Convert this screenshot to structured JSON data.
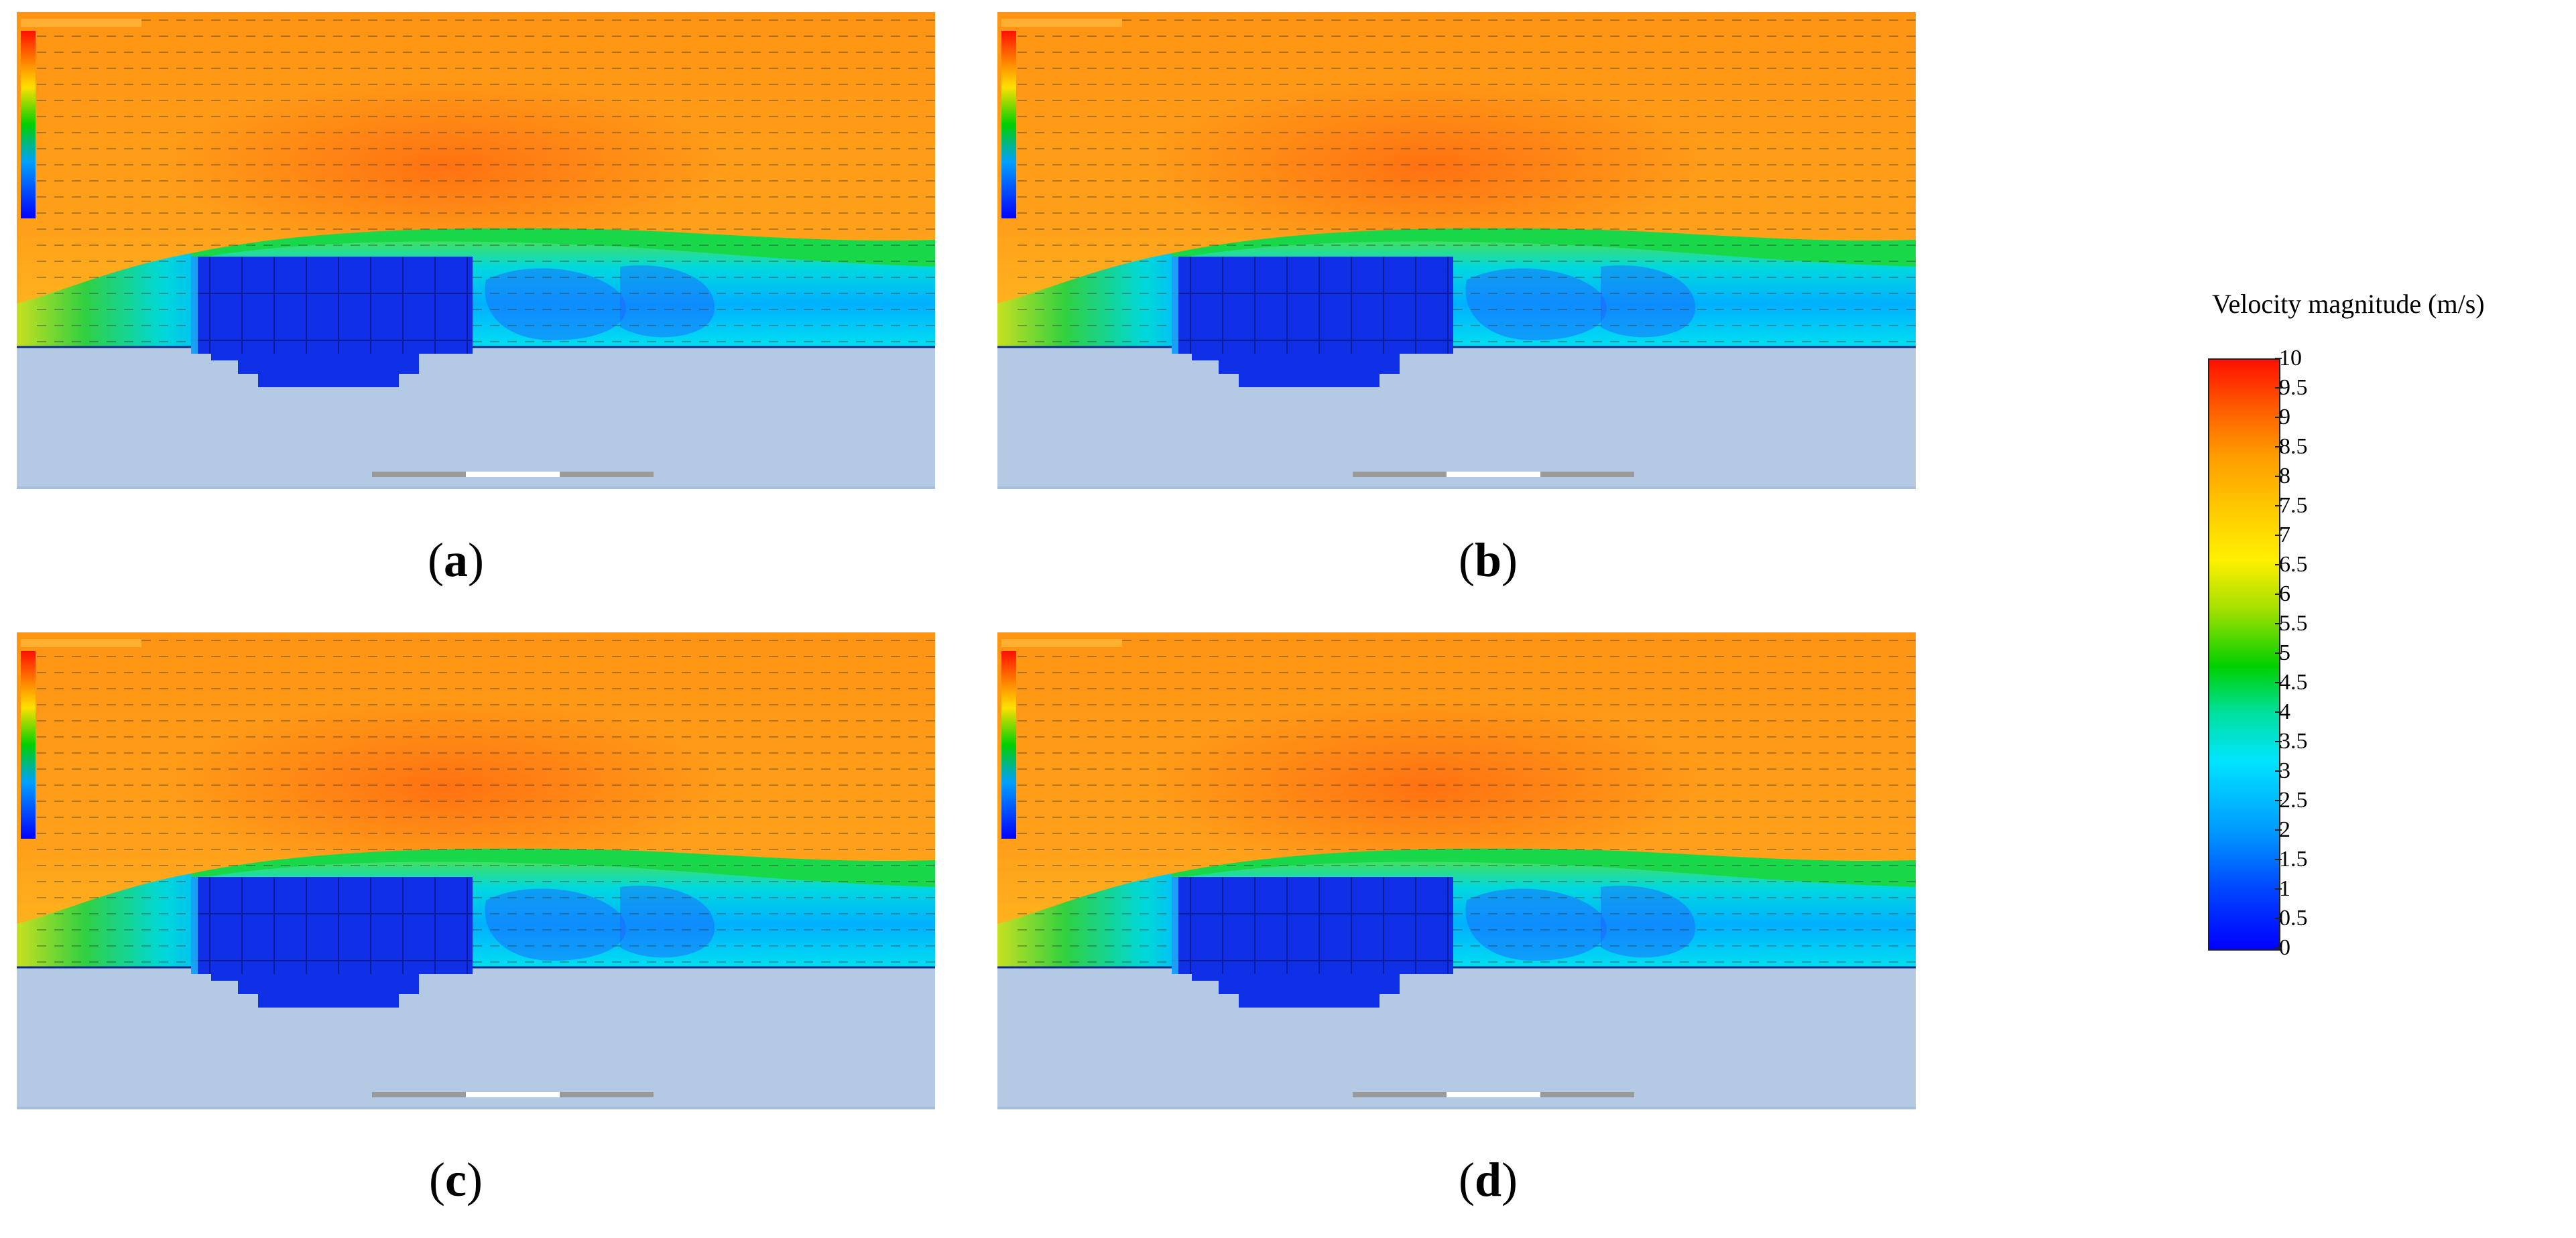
{
  "panels": [
    {
      "id": "a",
      "caption": "a"
    },
    {
      "id": "b",
      "caption": "b"
    },
    {
      "id": "c",
      "caption": "c"
    },
    {
      "id": "d",
      "caption": "d"
    }
  ],
  "legend": {
    "title": "Velocity magnitude (m/s)",
    "unit": "m/s",
    "min": 0,
    "max": 10,
    "ticks": [
      "10",
      "9.5",
      "9",
      "8.5",
      "8",
      "7.5",
      "7",
      "6.5",
      "6",
      "5.5",
      "5",
      "4.5",
      "4",
      "3.5",
      "3",
      "2.5",
      "2",
      "1.5",
      "1",
      "0.5",
      "0"
    ],
    "colors": {
      "low": "#0000ff",
      "mid": "#00d000",
      "high": "#ff1000"
    }
  },
  "colors": {
    "ground": "#b7cde6",
    "body": "#1030e8",
    "freestream": "#ff9a1a"
  }
}
